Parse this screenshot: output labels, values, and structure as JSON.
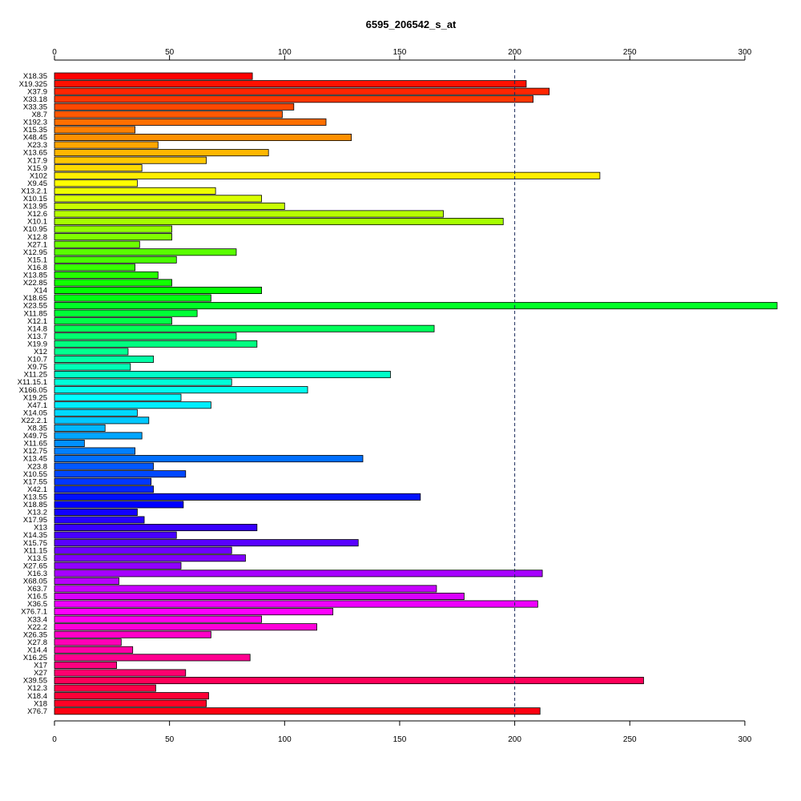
{
  "chart_data": {
    "type": "bar",
    "orientation": "horizontal",
    "title": "6595_206542_s_at",
    "xlim": [
      0,
      315
    ],
    "x_ticks": [
      0,
      50,
      100,
      150,
      200,
      250,
      300
    ],
    "x_tick_labels": [
      "0",
      "50",
      "100",
      "150",
      "200",
      "250",
      "300"
    ],
    "axes_positions": [
      "top",
      "bottom"
    ],
    "grid": false,
    "reference_line": {
      "value": 200,
      "style": "dashed"
    },
    "color_scheme": "rainbow",
    "categories": [
      "X18.35",
      "X19.325",
      "X37.9",
      "X33.18",
      "X33.35",
      "X8.7",
      "X192.3",
      "X15.35",
      "X48.45",
      "X23.3",
      "X13.65",
      "X17.9",
      "X15.9",
      "X102",
      "X9.45",
      "X13.2.1",
      "X10.15",
      "X13.95",
      "X12.6",
      "X10.1",
      "X10.95",
      "X12.8",
      "X27.1",
      "X12.95",
      "X15.1",
      "X16.8",
      "X13.85",
      "X22.85",
      "X14",
      "X18.65",
      "X23.55",
      "X11.85",
      "X12.1",
      "X14.8",
      "X13.7",
      "X19.9",
      "X12",
      "X10.7",
      "X9.75",
      "X11.25",
      "X11.15.1",
      "X166.05",
      "X19.25",
      "X47.1",
      "X14.05",
      "X22.2.1",
      "X8.35",
      "X49.75",
      "X11.65",
      "X12.75",
      "X13.45",
      "X23.8",
      "X10.55",
      "X17.55",
      "X42.1",
      "X13.55",
      "X18.85",
      "X13.2",
      "X17.95",
      "X13",
      "X14.35",
      "X15.75",
      "X11.15",
      "X13.5",
      "X27.65",
      "X16.3",
      "X68.05",
      "X63.7",
      "X16.5",
      "X36.5",
      "X76.7.1",
      "X33.4",
      "X22.2",
      "X26.35",
      "X27.8",
      "X14.4",
      "X16.25",
      "X17",
      "X27",
      "X39.55",
      "X12.3",
      "X18.4",
      "X18",
      "X76.7"
    ],
    "values": [
      86,
      205,
      215,
      208,
      104,
      99,
      118,
      35,
      129,
      45,
      93,
      66,
      38,
      237,
      36,
      70,
      90,
      100,
      169,
      195,
      51,
      51,
      37,
      79,
      53,
      35,
      45,
      51,
      90,
      68,
      314,
      62,
      51,
      165,
      79,
      88,
      32,
      43,
      33,
      146,
      77,
      110,
      55,
      68,
      36,
      41,
      22,
      38,
      13,
      35,
      134,
      43,
      57,
      42,
      43,
      159,
      56,
      36,
      39,
      88,
      53,
      132,
      77,
      83,
      55,
      212,
      28,
      166,
      178,
      210,
      121,
      90,
      114,
      68,
      29,
      34,
      85,
      27,
      57,
      256,
      44,
      67,
      66,
      211
    ]
  }
}
